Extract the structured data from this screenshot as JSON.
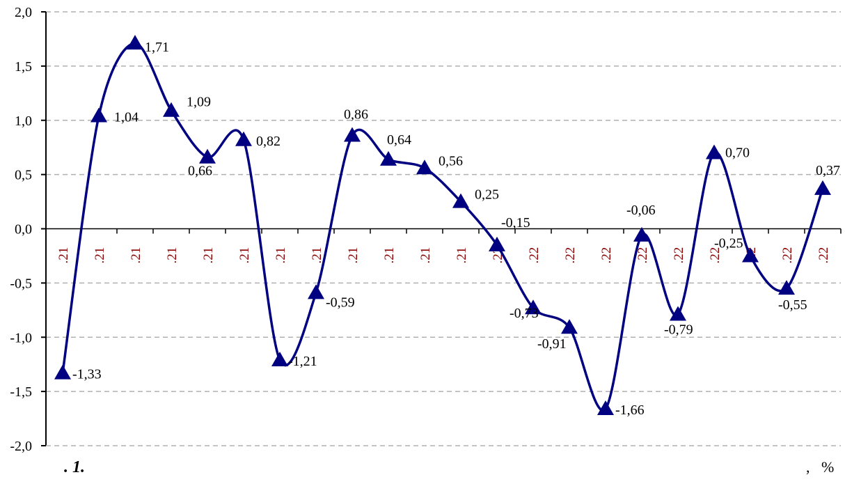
{
  "chart_data": {
    "type": "line",
    "title": "",
    "xlabel": "",
    "ylabel": "",
    "ylim": [
      -2.0,
      2.0
    ],
    "yticks": [
      2.0,
      1.5,
      1.0,
      0.5,
      0.0,
      -0.5,
      -1.0,
      -1.5,
      -2.0
    ],
    "ytick_labels": [
      "2,0",
      "1,5",
      "1,0",
      "0,5",
      "0,0",
      "-0,5",
      "-1,0",
      "-1,5",
      "-2,0"
    ],
    "grid": true,
    "line_color": "#000080",
    "tick_label_color": "#8b0000",
    "categories": [
      ".21",
      ".21",
      ".21",
      ".21",
      ".21",
      ".21",
      ".21",
      ".21",
      ".21",
      ".21",
      ".21",
      ".21",
      ".22",
      ".22",
      ".22",
      ".22",
      ".22",
      ".22",
      ".22",
      ".22",
      ".22",
      ".22"
    ],
    "values": [
      -1.33,
      1.04,
      1.71,
      1.09,
      0.66,
      0.82,
      -1.21,
      -0.59,
      0.86,
      0.64,
      0.56,
      0.25,
      -0.15,
      -0.73,
      -0.91,
      -1.66,
      -0.06,
      -0.79,
      0.7,
      -0.25,
      -0.55,
      0.37
    ],
    "data_labels": [
      "-1,33",
      "1,04",
      "1,71",
      "1,09",
      "0,66",
      "0,82",
      "-1,21",
      "-0,59",
      "0,86",
      "0,64",
      "0,56",
      "0,25",
      "-0,15",
      "-0,73",
      "-0,91",
      "-1,66",
      "-0,06",
      "-0,79",
      "0,70",
      "-0,25",
      "-0,55",
      "0,37"
    ]
  },
  "caption": ". 1.",
  "unit_label": ",   %"
}
